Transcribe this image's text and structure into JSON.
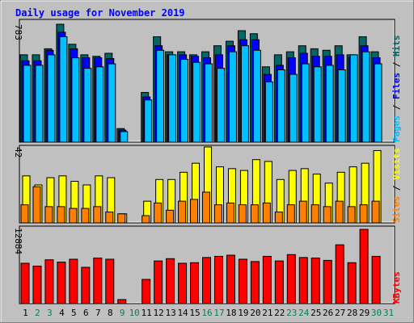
{
  "title": "Daily usage for November 2019",
  "colors": {
    "hits": "#006666",
    "files": "#0000ff",
    "pages": "#00c0ff",
    "visits": "#ffff00",
    "sites": "#ff8000",
    "kbytes": "#ff0000",
    "weekend_day": "#00805c",
    "weekday_day": "#000000",
    "panel_bg": "#c0c0c0",
    "title_color": "#0000ff"
  },
  "chart_data": [
    {
      "type": "bar",
      "panel": "top",
      "ymax_label": "783",
      "ylim": [
        0,
        783
      ],
      "side_labels": [
        "Pages",
        "Files",
        "Hits"
      ],
      "categories": [
        "1",
        "2",
        "3",
        "4",
        "5",
        "6",
        "7",
        "8",
        "9",
        "10",
        "11",
        "12",
        "13",
        "14",
        "15",
        "16",
        "17",
        "18",
        "19",
        "20",
        "21",
        "22",
        "23",
        "24",
        "25",
        "26",
        "27",
        "28",
        "29",
        "30"
      ],
      "series": [
        {
          "name": "Hits",
          "values": [
            580,
            580,
            620,
            783,
            650,
            580,
            570,
            590,
            90,
            0,
            330,
            700,
            600,
            600,
            580,
            600,
            640,
            670,
            740,
            720,
            500,
            580,
            600,
            640,
            620,
            610,
            640,
            580,
            700,
            600
          ]
        },
        {
          "name": "Files",
          "values": [
            540,
            540,
            610,
            730,
            620,
            560,
            560,
            555,
            80,
            0,
            300,
            640,
            580,
            580,
            570,
            560,
            580,
            640,
            680,
            680,
            450,
            510,
            560,
            590,
            570,
            570,
            580,
            565,
            640,
            560
          ]
        },
        {
          "name": "Pages",
          "values": [
            510,
            510,
            580,
            700,
            560,
            490,
            500,
            520,
            70,
            0,
            280,
            610,
            580,
            550,
            530,
            520,
            490,
            600,
            640,
            610,
            400,
            480,
            450,
            520,
            500,
            510,
            480,
            580,
            600,
            520
          ]
        }
      ]
    },
    {
      "type": "bar",
      "panel": "middle",
      "ymax_label": "42",
      "ylim": [
        0,
        42
      ],
      "side_labels": [
        "Sites",
        "Visits"
      ],
      "categories": [
        "1",
        "2",
        "3",
        "4",
        "5",
        "6",
        "7",
        "8",
        "9",
        "10",
        "11",
        "12",
        "13",
        "14",
        "15",
        "16",
        "17",
        "18",
        "19",
        "20",
        "21",
        "22",
        "23",
        "24",
        "25",
        "26",
        "27",
        "28",
        "29",
        "30"
      ],
      "series": [
        {
          "name": "Visits",
          "values": [
            26,
            21,
            25,
            26,
            23,
            21,
            26,
            25,
            5,
            0,
            12,
            24,
            24,
            28,
            33,
            42,
            31,
            30,
            29,
            35,
            34,
            24,
            29,
            30,
            27,
            22,
            28,
            31,
            33,
            40
          ]
        },
        {
          "name": "Sites",
          "values": [
            10,
            20,
            9,
            9,
            8,
            8,
            9,
            6,
            5,
            0,
            4,
            11,
            7,
            12,
            13,
            17,
            10,
            11,
            10,
            10,
            11,
            6,
            10,
            12,
            10,
            9,
            12,
            9,
            10,
            12
          ]
        }
      ]
    },
    {
      "type": "bar",
      "panel": "bottom",
      "ymax_label": "12884",
      "ylim": [
        0,
        12884
      ],
      "side_labels": [
        "KBytes"
      ],
      "categories": [
        "1",
        "2",
        "3",
        "4",
        "5",
        "6",
        "7",
        "8",
        "9",
        "10",
        "11",
        "12",
        "13",
        "14",
        "15",
        "16",
        "17",
        "18",
        "19",
        "20",
        "21",
        "22",
        "23",
        "24",
        "25",
        "26",
        "27",
        "28",
        "29",
        "30"
      ],
      "series": [
        {
          "name": "KBytes",
          "values": [
            7000,
            6500,
            7600,
            7200,
            7700,
            6300,
            7900,
            7700,
            700,
            0,
            4200,
            7400,
            7800,
            7000,
            7100,
            8000,
            8200,
            8400,
            7700,
            7300,
            8200,
            7400,
            8500,
            8000,
            7900,
            7500,
            10200,
            7100,
            12884,
            8200
          ]
        }
      ]
    }
  ],
  "x_axis": {
    "days": [
      "1",
      "2",
      "3",
      "4",
      "5",
      "6",
      "7",
      "8",
      "9",
      "10",
      "11",
      "12",
      "13",
      "14",
      "15",
      "16",
      "17",
      "18",
      "19",
      "20",
      "21",
      "22",
      "23",
      "24",
      "25",
      "26",
      "27",
      "28",
      "29",
      "30",
      "31"
    ],
    "weekend": [
      "2",
      "3",
      "9",
      "10",
      "16",
      "17",
      "23",
      "24",
      "30",
      "31"
    ]
  }
}
